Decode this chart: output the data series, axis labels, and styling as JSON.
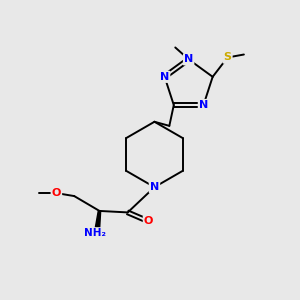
{
  "bg_color": "#e8e8e8",
  "bond_color": "#000000",
  "atom_colors": {
    "N": "#0000ff",
    "O": "#ff0000",
    "S": "#ccaa00",
    "C": "#000000",
    "H": "#000000"
  },
  "font_size": 8,
  "title": ""
}
